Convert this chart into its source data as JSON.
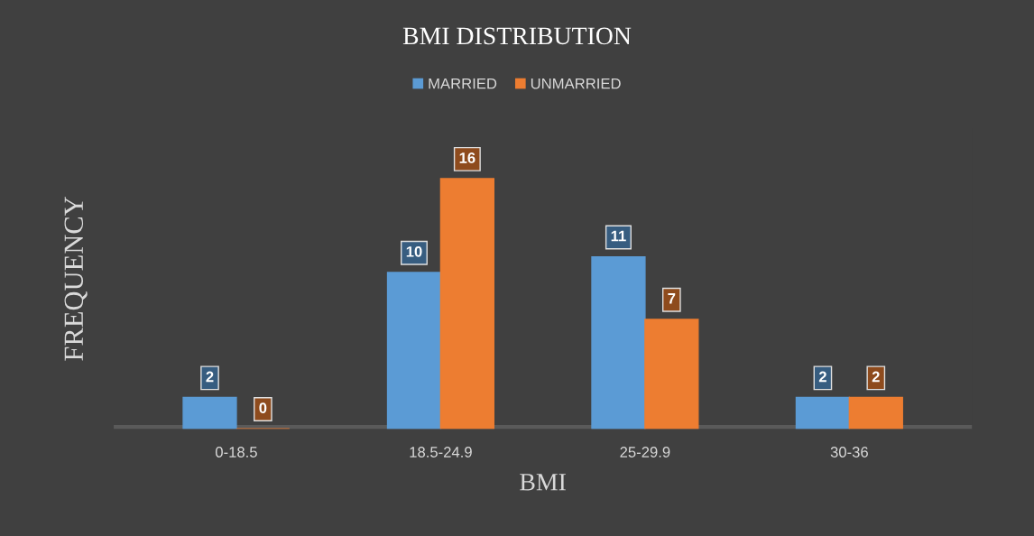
{
  "chart_data": {
    "type": "bar",
    "title": "BMI DISTRIBUTION",
    "xlabel": "BMI",
    "ylabel": "FREQUENCY",
    "categories": [
      "0-18.5",
      "18.5-24.9",
      "25-29.9",
      "30-36"
    ],
    "series": [
      {
        "name": "MARRIED",
        "color": "#5b9bd5",
        "values": [
          2,
          10,
          11,
          2
        ]
      },
      {
        "name": "UNMARRIED",
        "color": "#ed7d31",
        "values": [
          0,
          16,
          7,
          2
        ]
      }
    ],
    "data_labels": true,
    "legend": "top",
    "grid": false
  }
}
